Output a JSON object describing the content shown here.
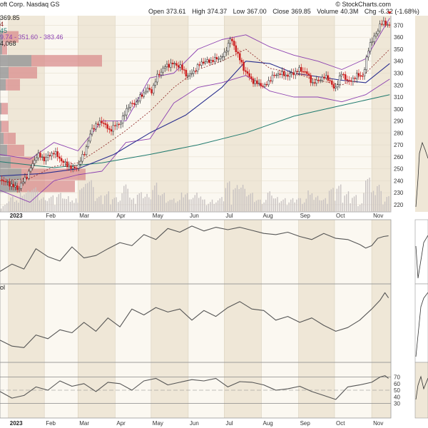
{
  "header": {
    "ticker_partial": "oft Corp. Nasdaq GS",
    "source": "© StockCharts.com",
    "open_label": "Open",
    "open_value": "373.61",
    "high_label": "High",
    "high_value": "374.37",
    "low_label": "Low",
    "low_value": "367.00",
    "close_label": "Close",
    "close_value": "369.85",
    "volume_label": "Volume",
    "volume_value": "40.3M",
    "chg_label": "Chg",
    "chg_value": "-6.32 (-1.68%)",
    "down_icon": "down-triangle-icon",
    "overlay_lines": [
      "369.85",
      "4",
      "45",
      "9.74 - 351.60 - 383.46",
      "4,068"
    ]
  },
  "panel_labels": {
    "obv_partial": "ol"
  },
  "colors": {
    "up": "#2b2b2b",
    "down": "#cc1f1f",
    "ma_short": "#8a1f1f",
    "ma_mid": "#2a2f8f",
    "ma_long": "#1f7a6e",
    "bands": "#8b3fb0",
    "volume": "#c8c2c2",
    "vbp_gray": "#999999",
    "vbp_red": "#d98e8e",
    "shade": "#efe7d7",
    "line": "#555555"
  },
  "chart_data": [
    {
      "type": "line",
      "panel": "price",
      "ylim": [
        214,
        378
      ],
      "yticks": [
        "370",
        "360",
        "350",
        "340",
        "330",
        "320",
        "310",
        "300",
        "290",
        "280",
        "270",
        "260",
        "250",
        "240",
        "230",
        "220"
      ],
      "ytick_values": [
        370,
        360,
        350,
        340,
        330,
        320,
        310,
        300,
        290,
        280,
        270,
        260,
        250,
        240,
        230,
        220
      ],
      "x_months": [
        "2023",
        "Feb",
        "Mar",
        "Apr",
        "May",
        "Jun",
        "Jul",
        "Aug",
        "Sep",
        "Oct",
        "Nov"
      ],
      "x_month_days": [
        2,
        32,
        60,
        91,
        121,
        152,
        182,
        213,
        244,
        274,
        305
      ],
      "x_range_days": [
        -5,
        321
      ],
      "series_close": {
        "x": [
          -5,
          2,
          10,
          18,
          26,
          32,
          40,
          48,
          56,
          60,
          66,
          72,
          80,
          86,
          91,
          96,
          102,
          108,
          112,
          118,
          121,
          126,
          132,
          138,
          145,
          152,
          158,
          163,
          170,
          176,
          182,
          187,
          192,
          198,
          205,
          210,
          216,
          222,
          228,
          234,
          240,
          244,
          250,
          256,
          262,
          268,
          274,
          280,
          286,
          292,
          298,
          303,
          308,
          312,
          316,
          319
        ],
        "y": [
          241,
          238,
          233,
          245,
          262,
          258,
          264,
          255,
          250,
          252,
          265,
          284,
          290,
          282,
          286,
          289,
          303,
          305,
          310,
          317,
          314,
          327,
          335,
          338,
          336,
          327,
          333,
          339,
          340,
          342,
          345,
          359,
          349,
          334,
          324,
          321,
          319,
          327,
          330,
          328,
          330,
          333,
          331,
          321,
          325,
          327,
          316,
          330,
          322,
          328,
          328,
          354,
          361,
          371,
          372,
          369.85
        ]
      },
      "series_ma20": {
        "x": [
          -5,
          20,
          40,
          60,
          80,
          100,
          120,
          140,
          160,
          180,
          200,
          220,
          240,
          260,
          280,
          300,
          320
        ],
        "y": [
          240,
          242,
          252,
          255,
          268,
          282,
          298,
          318,
          333,
          340,
          350,
          334,
          330,
          324,
          320,
          330,
          350
        ]
      },
      "series_ma50": {
        "x": [
          -5,
          30,
          60,
          90,
          120,
          150,
          180,
          200,
          220,
          240,
          260,
          280,
          300,
          320
        ],
        "y": [
          244,
          246,
          250,
          262,
          280,
          295,
          318,
          340,
          338,
          330,
          327,
          324,
          322,
          338
        ]
      },
      "series_ma200": {
        "x": [
          -5,
          40,
          80,
          120,
          160,
          200,
          240,
          280,
          320
        ],
        "y": [
          256,
          251,
          255,
          262,
          270,
          280,
          294,
          303,
          312
        ]
      },
      "series_bb_upper": {
        "x": [
          -5,
          20,
          40,
          60,
          80,
          100,
          120,
          140,
          160,
          180,
          200,
          220,
          240,
          260,
          280,
          300,
          320
        ],
        "y": [
          262,
          258,
          272,
          265,
          290,
          290,
          326,
          330,
          350,
          358,
          362,
          352,
          345,
          340,
          333,
          342,
          376
        ]
      },
      "series_bb_lower": {
        "x": [
          -5,
          20,
          40,
          60,
          80,
          100,
          120,
          140,
          160,
          180,
          200,
          220,
          240,
          260,
          280,
          300,
          320
        ],
        "y": [
          232,
          222,
          240,
          245,
          248,
          272,
          275,
          305,
          318,
          322,
          328,
          315,
          310,
          310,
          306,
          312,
          325
        ]
      },
      "volume_by_price": [
        {
          "price": 360,
          "up": 4,
          "down": 22
        },
        {
          "price": 350,
          "up": 3,
          "down": 7
        },
        {
          "price": 340,
          "up": 44,
          "down": 99
        },
        {
          "price": 330,
          "up": 12,
          "down": 40
        },
        {
          "price": 320,
          "up": 8,
          "down": 20
        },
        {
          "price": 300,
          "up": 2,
          "down": 9
        },
        {
          "price": 285,
          "up": 2,
          "down": 10
        },
        {
          "price": 275,
          "up": 5,
          "down": 17
        },
        {
          "price": 265,
          "up": 10,
          "down": 24
        },
        {
          "price": 255,
          "up": 15,
          "down": 33
        },
        {
          "price": 245,
          "up": 30,
          "down": 90
        },
        {
          "price": 235,
          "up": 25,
          "down": 80
        }
      ]
    },
    {
      "type": "line",
      "panel": "indicator1",
      "ylim": [
        0,
        100
      ],
      "x": [
        -5,
        5,
        15,
        25,
        35,
        45,
        55,
        65,
        75,
        85,
        95,
        105,
        115,
        125,
        135,
        145,
        155,
        165,
        175,
        185,
        195,
        205,
        215,
        225,
        235,
        245,
        255,
        265,
        275,
        285,
        295,
        300,
        305,
        310,
        315,
        319
      ],
      "y": [
        18,
        30,
        22,
        55,
        42,
        35,
        58,
        40,
        44,
        55,
        65,
        60,
        78,
        70,
        88,
        82,
        92,
        84,
        90,
        86,
        90,
        85,
        80,
        78,
        82,
        75,
        70,
        80,
        72,
        70,
        62,
        56,
        60,
        72,
        75,
        76
      ]
    },
    {
      "type": "line",
      "panel": "obv",
      "ylim": [
        0,
        100
      ],
      "x": [
        -5,
        5,
        15,
        25,
        35,
        45,
        55,
        65,
        75,
        85,
        95,
        105,
        115,
        125,
        135,
        145,
        155,
        165,
        175,
        185,
        195,
        205,
        215,
        225,
        235,
        245,
        255,
        265,
        275,
        285,
        295,
        305,
        312,
        316,
        319
      ],
      "y": [
        28,
        20,
        18,
        35,
        30,
        42,
        38,
        52,
        40,
        58,
        46,
        70,
        62,
        72,
        66,
        70,
        55,
        68,
        60,
        72,
        80,
        70,
        68,
        55,
        60,
        52,
        58,
        48,
        40,
        45,
        55,
        70,
        82,
        92,
        85
      ]
    },
    {
      "type": "line",
      "panel": "rsi",
      "ylim": [
        10,
        90
      ],
      "yticks": [
        "70",
        "60",
        "50",
        "40",
        "30"
      ],
      "ytick_values": [
        70,
        60,
        50,
        40,
        30
      ],
      "x": [
        -5,
        5,
        15,
        25,
        35,
        45,
        55,
        65,
        75,
        85,
        95,
        105,
        115,
        125,
        135,
        145,
        155,
        165,
        175,
        185,
        195,
        205,
        215,
        225,
        235,
        245,
        255,
        265,
        275,
        285,
        295,
        305,
        312,
        316,
        319
      ],
      "y": [
        48,
        38,
        42,
        55,
        50,
        64,
        56,
        60,
        48,
        62,
        60,
        50,
        64,
        68,
        58,
        62,
        66,
        64,
        68,
        55,
        63,
        62,
        58,
        50,
        52,
        56,
        48,
        42,
        36,
        55,
        58,
        62,
        70,
        72,
        68
      ]
    }
  ]
}
